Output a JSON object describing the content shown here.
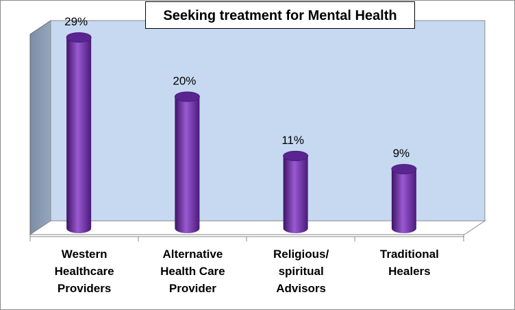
{
  "chart_data": {
    "type": "bar",
    "title": "Seeking treatment for Mental Health",
    "categories": [
      "Western Healthcare Providers",
      "Alternative Health Care Provider",
      "Religious/ spiritual Advisors",
      "Traditional Healers"
    ],
    "values": [
      29,
      20,
      11,
      9
    ],
    "value_labels": [
      "29%",
      "20%",
      "11%",
      "9%"
    ],
    "color": "#7030a0"
  }
}
